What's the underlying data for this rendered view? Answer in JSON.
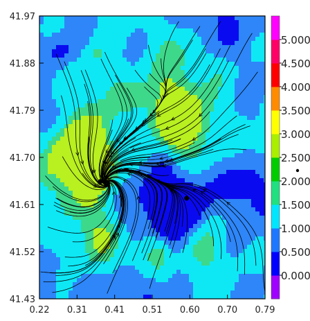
{
  "chart_data": {
    "type": "heatmap",
    "title": "",
    "xlabel": "",
    "ylabel": "",
    "xlim": [
      0.22,
      0.79
    ],
    "ylim": [
      41.43,
      41.97
    ],
    "x_tick_labels": [
      "0.22",
      "0.31",
      "0.41",
      "0.51",
      "0.60",
      "0.70",
      "0.79"
    ],
    "y_tick_labels": [
      "41.97",
      "41.88",
      "41.79",
      "41.70",
      "41.61",
      "41.52",
      "41.43"
    ],
    "overlay": "streamlines",
    "colorbar": {
      "levels": [
        "0.000",
        "0.500",
        "1.000",
        "1.500",
        "2.000",
        "2.500",
        "3.000",
        "3.500",
        "4.000",
        "4.500",
        "5.000"
      ],
      "colors": [
        "#a000ff",
        "#0000ff",
        "#1e78ff",
        "#00e6ff",
        "#20e080",
        "#00cc00",
        "#aaee00",
        "#ffff00",
        "#ff8c00",
        "#ff0000",
        "#ff0066",
        "#ff00ff"
      ]
    },
    "field_colors": {
      "dark": "#0a0af0",
      "mid": "#2e86f8",
      "light": "#0ee8f5",
      "high": "#3ed88a",
      "highest": "#b8f020"
    },
    "stagnation_points": [
      {
        "x": 0.374,
        "y": 41.654
      },
      {
        "x": 0.592,
        "y": 41.622
      }
    ]
  }
}
